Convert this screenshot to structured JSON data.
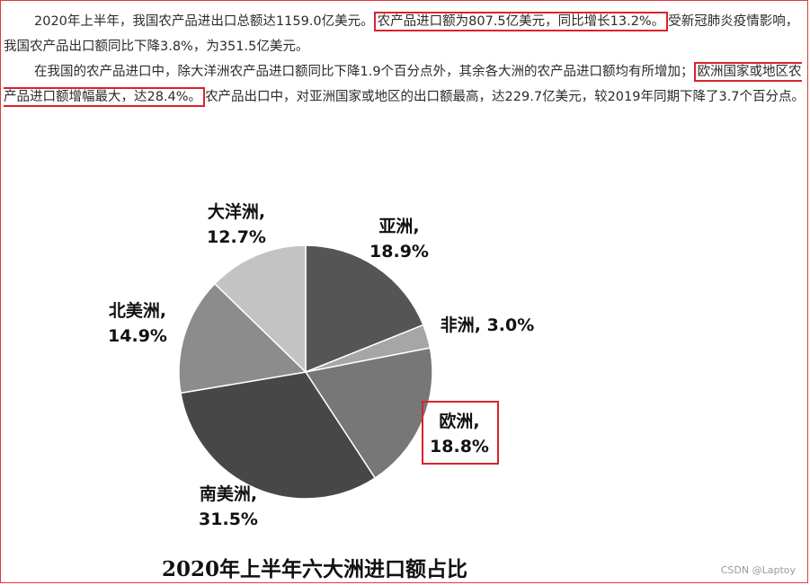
{
  "paragraphs": {
    "p1": {
      "a": "2020年上半年，我国农产品进出口总额达1159.0亿美元。",
      "b": "农产品进口额为807.5亿美元，同比增长13.2%。",
      "c": "受新冠肺炎疫情影响，我国农产品出口额同比下降3.8%，为351.5亿美元。"
    },
    "p2": {
      "a": "在我国的农产品进口中，除大洋洲农产品进口额同比下降1.9个百分点外，其余各大洲的农产品进口额均有所增加；",
      "b": "欧洲国家或地区农产品进口额增幅最大，达28.4%。",
      "c": "农产品出口中，对亚洲国家或地区的出口额最高，达229.7亿美元，较2019年同期下降了3.7个百分点。"
    }
  },
  "chart_data": {
    "type": "pie",
    "title": "2020年上半年六大洲进口额占比",
    "slices": [
      {
        "name": "亚洲",
        "value": 18.9,
        "label": "18.9%",
        "color": "#555555"
      },
      {
        "name": "非洲",
        "value": 3.0,
        "label": "3.0%",
        "color": "#a6a6a6"
      },
      {
        "name": "欧洲",
        "value": 18.8,
        "label": "18.8%",
        "color": "#777777"
      },
      {
        "name": "南美洲",
        "value": 31.5,
        "label": "31.5%",
        "color": "#474747"
      },
      {
        "name": "北美洲",
        "value": 14.9,
        "label": "14.9%",
        "color": "#8c8c8c"
      },
      {
        "name": "大洋洲",
        "value": 12.7,
        "label": "12.7%",
        "color": "#c3c3c3"
      }
    ],
    "highlighted": "欧洲"
  },
  "watermark": "CSDN @Laptoy",
  "colors": {
    "highlight_border": "#d8242b"
  }
}
